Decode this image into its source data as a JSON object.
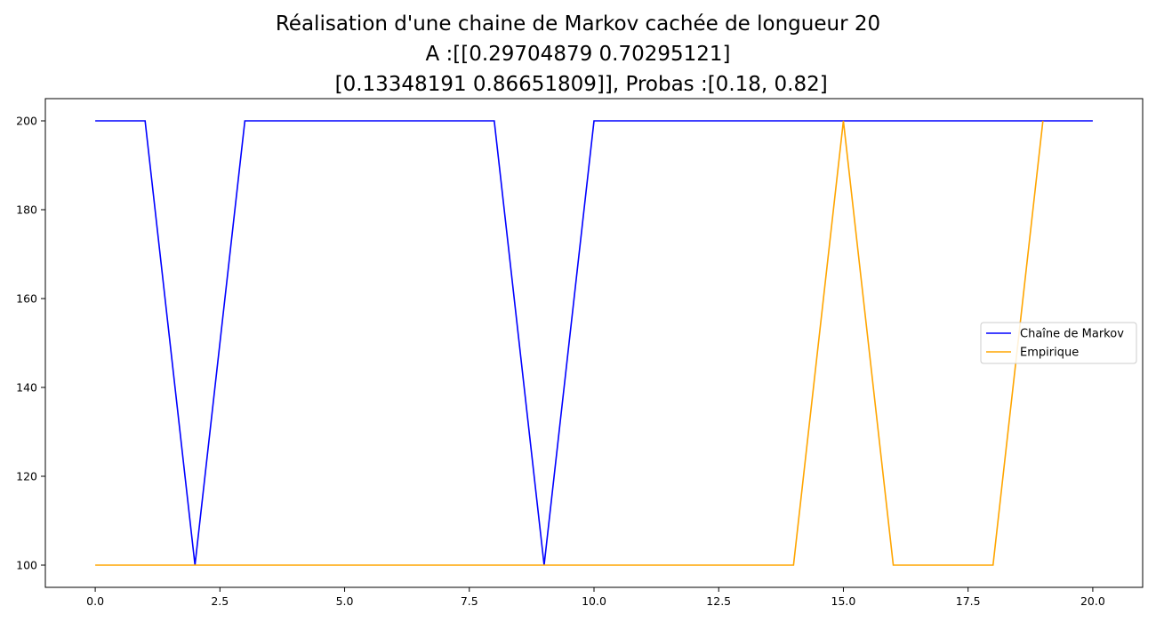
{
  "chart_data": {
    "type": "line",
    "title_lines": [
      "Réalisation d'une chaine de Markov cachée de longueur 20",
      "A :[[0.29704879 0.70295121]",
      " [0.13348191 0.86651809]], Probas :[0.18, 0.82]"
    ],
    "xlabel": "",
    "ylabel": "",
    "xlim": [
      -1.0,
      21.0
    ],
    "ylim": [
      95,
      205
    ],
    "xticks": [
      0.0,
      2.5,
      5.0,
      7.5,
      10.0,
      12.5,
      15.0,
      17.5,
      20.0
    ],
    "xtick_labels": [
      "0.0",
      "2.5",
      "5.0",
      "7.5",
      "10.0",
      "12.5",
      "15.0",
      "17.5",
      "20.0"
    ],
    "yticks": [
      100,
      120,
      140,
      160,
      180,
      200
    ],
    "ytick_labels": [
      "100",
      "120",
      "140",
      "160",
      "180",
      "200"
    ],
    "grid": false,
    "legend_position": "right",
    "x": [
      0,
      1,
      2,
      3,
      4,
      5,
      6,
      7,
      8,
      9,
      10,
      11,
      12,
      13,
      14,
      15,
      16,
      17,
      18,
      19,
      20
    ],
    "series": [
      {
        "name": "Chaîne de Markov",
        "color": "#0000ff",
        "values": [
          200,
          200,
          100,
          200,
          200,
          200,
          200,
          200,
          200,
          100,
          200,
          200,
          200,
          200,
          200,
          200,
          200,
          200,
          200,
          200,
          200
        ]
      },
      {
        "name": "Empirique",
        "color": "#ffa500",
        "values": [
          100,
          100,
          100,
          100,
          100,
          100,
          100,
          100,
          100,
          100,
          100,
          100,
          100,
          100,
          100,
          200,
          100,
          100,
          100,
          200,
          null
        ]
      }
    ]
  }
}
